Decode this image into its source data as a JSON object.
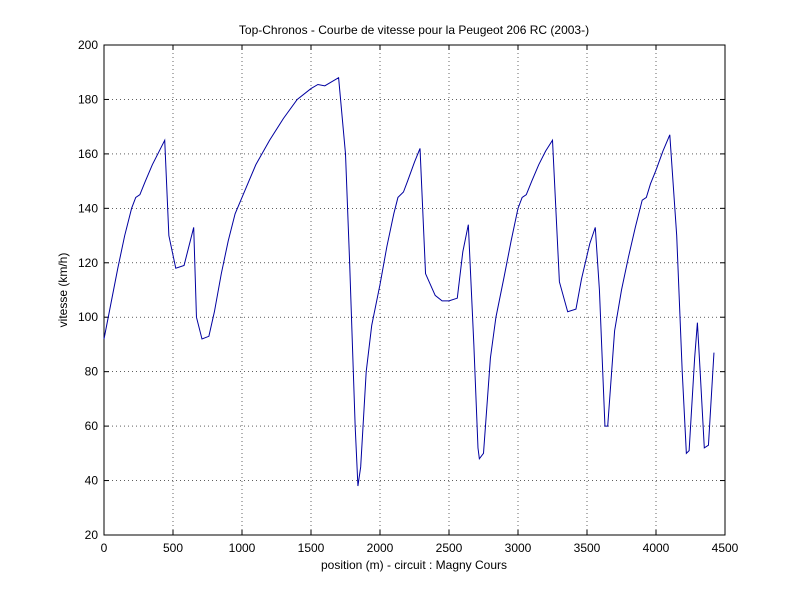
{
  "chart_data": {
    "type": "line",
    "title": "Top-Chronos - Courbe de vitesse pour la Peugeot 206 RC (2003-)",
    "xlabel": "position (m) - circuit : Magny Cours",
    "ylabel": "vitesse (km/h)",
    "x": [
      0,
      50,
      100,
      150,
      200,
      230,
      260,
      300,
      350,
      400,
      440,
      470,
      520,
      580,
      620,
      650,
      670,
      710,
      760,
      800,
      850,
      900,
      950,
      1000,
      1050,
      1100,
      1200,
      1300,
      1400,
      1500,
      1550,
      1600,
      1700,
      1750,
      1780,
      1820,
      1840,
      1860,
      1900,
      1940,
      2000,
      2050,
      2100,
      2130,
      2170,
      2200,
      2250,
      2290,
      2330,
      2400,
      2450,
      2500,
      2560,
      2600,
      2640,
      2680,
      2710,
      2720,
      2750,
      2800,
      2840,
      2900,
      2950,
      3000,
      3030,
      3060,
      3100,
      3150,
      3200,
      3250,
      3300,
      3360,
      3420,
      3460,
      3520,
      3560,
      3590,
      3630,
      3650,
      3700,
      3750,
      3800,
      3850,
      3900,
      3930,
      3960,
      4000,
      4050,
      4100,
      4150,
      4190,
      4220,
      4240,
      4280,
      4300,
      4320,
      4350,
      4380,
      4420
    ],
    "series": [
      {
        "name": "vitesse",
        "color": "#0000a0",
        "values": [
          92,
          105,
          118,
          130,
          140,
          144,
          145,
          150,
          156,
          161,
          165,
          130,
          118,
          119,
          127,
          133,
          100,
          92,
          93,
          102,
          116,
          128,
          138,
          144,
          150,
          156,
          165,
          173,
          180,
          184,
          185.5,
          185,
          188,
          160,
          120,
          60,
          38,
          45,
          80,
          97,
          112,
          126,
          138,
          144,
          146,
          150,
          157,
          162,
          116,
          108,
          106,
          106,
          107,
          124,
          134,
          90,
          52,
          48,
          50,
          85,
          100,
          115,
          128,
          140,
          144,
          145,
          150,
          156,
          161,
          165,
          113,
          102,
          103,
          114,
          127,
          133,
          110,
          60,
          60,
          95,
          110,
          122,
          133,
          143,
          144,
          149,
          154,
          161,
          167,
          130,
          80,
          50,
          51,
          85,
          98,
          80,
          52,
          53,
          87
        ]
      }
    ],
    "xlim": [
      0,
      4500
    ],
    "xticks": [
      0,
      500,
      1000,
      1500,
      2000,
      2500,
      3000,
      3500,
      4000,
      4500
    ],
    "ylim": [
      20,
      200
    ],
    "yticks": [
      20,
      40,
      60,
      80,
      100,
      120,
      140,
      160,
      180,
      200
    ],
    "grid": true
  }
}
